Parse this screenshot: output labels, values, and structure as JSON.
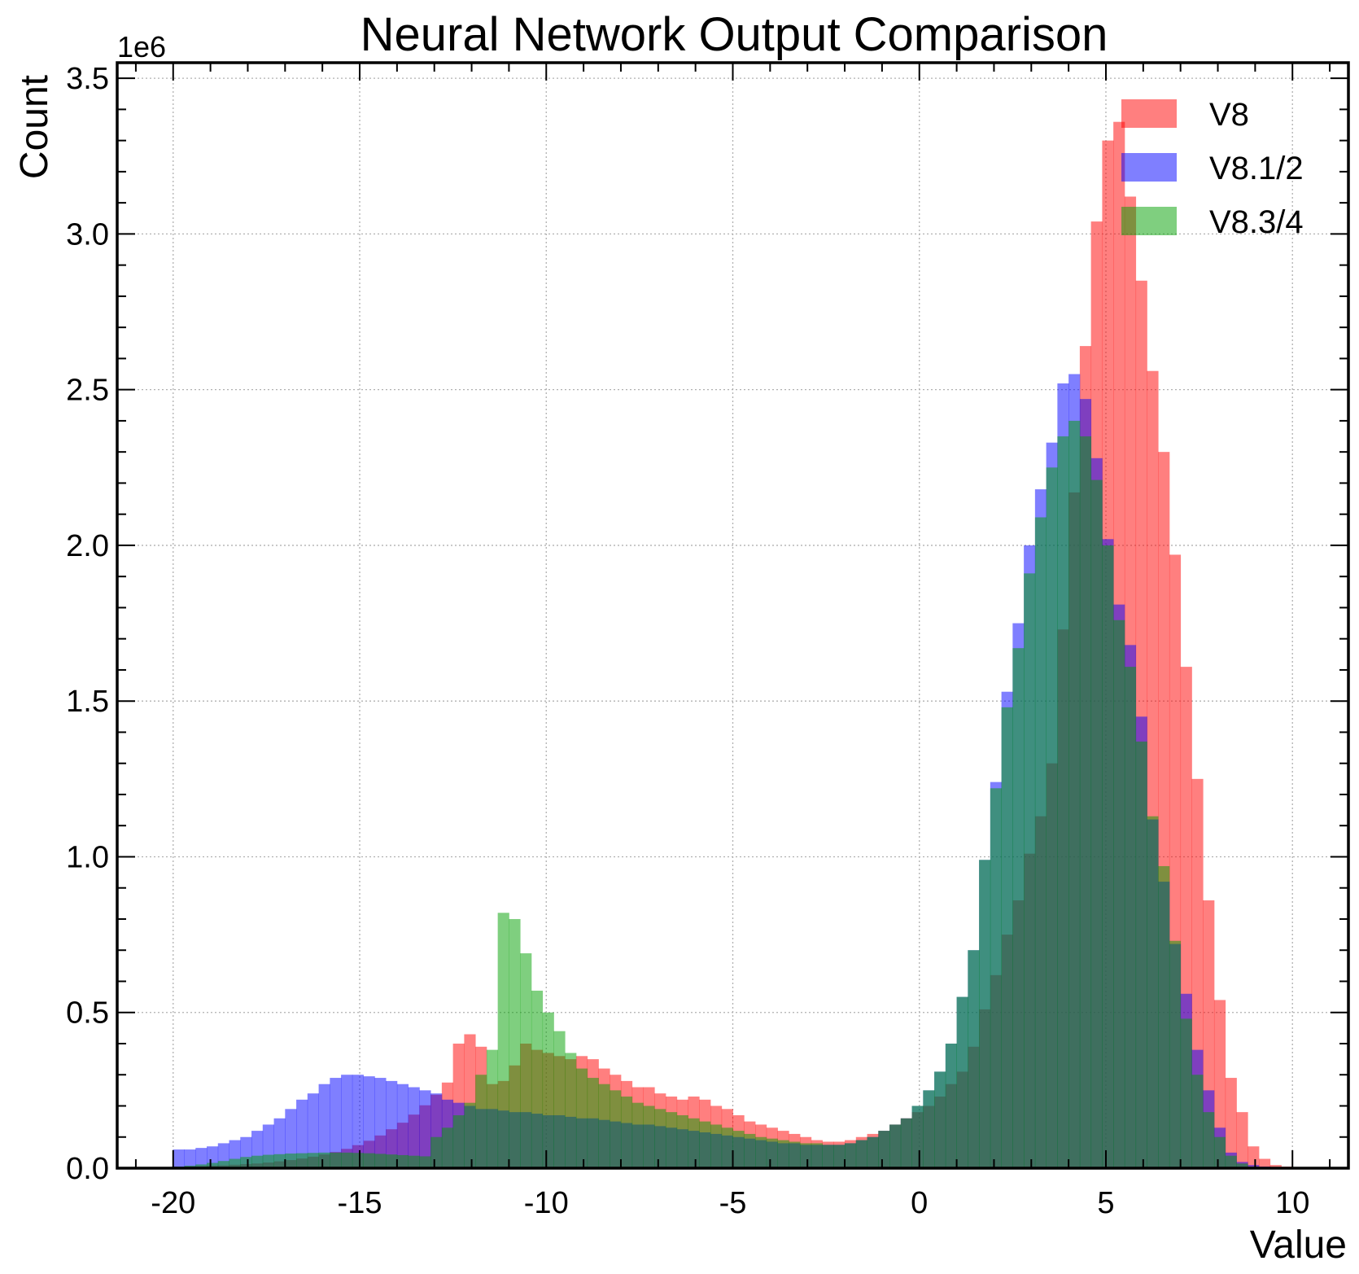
{
  "chart_data": {
    "type": "histogram",
    "title": "Neural Network Output Comparison",
    "xlabel": "Value",
    "ylabel": "Count",
    "y_multiplier_label": "1e6",
    "xlim": [
      -21.5,
      11.5
    ],
    "ylim": [
      0,
      3.55
    ],
    "x_ticks": [
      -20,
      -15,
      -10,
      -5,
      0,
      5,
      10
    ],
    "x_tick_labels": [
      "-20",
      "-15",
      "-10",
      "-5",
      "0",
      "5",
      "10"
    ],
    "y_ticks": [
      0,
      0.5,
      1.0,
      1.5,
      2.0,
      2.5,
      3.0,
      3.5
    ],
    "y_tick_labels": [
      "0.0",
      "0.5",
      "1.0",
      "1.5",
      "2.0",
      "2.5",
      "3.0",
      "3.5"
    ],
    "grid": true,
    "legend_position": "top-right",
    "bin_start": -20,
    "bin_width": 0.3,
    "y_unit": "millions",
    "series": [
      {
        "name": "V8",
        "color": "#ff0000",
        "opacity": 0.5,
        "values": [
          0.005,
          0.006,
          0.007,
          0.008,
          0.009,
          0.011,
          0.013,
          0.015,
          0.018,
          0.022,
          0.026,
          0.031,
          0.037,
          0.044,
          0.052,
          0.062,
          0.074,
          0.088,
          0.105,
          0.125,
          0.146,
          0.172,
          0.202,
          0.236,
          0.275,
          0.4,
          0.43,
          0.39,
          0.27,
          0.28,
          0.33,
          0.4,
          0.38,
          0.37,
          0.36,
          0.35,
          0.36,
          0.35,
          0.32,
          0.3,
          0.28,
          0.26,
          0.26,
          0.24,
          0.23,
          0.22,
          0.23,
          0.22,
          0.2,
          0.19,
          0.17,
          0.15,
          0.14,
          0.13,
          0.12,
          0.11,
          0.1,
          0.09,
          0.085,
          0.085,
          0.09,
          0.1,
          0.11,
          0.12,
          0.14,
          0.16,
          0.18,
          0.2,
          0.23,
          0.27,
          0.31,
          0.39,
          0.51,
          0.62,
          0.75,
          0.86,
          1.01,
          1.13,
          1.3,
          1.73,
          2.17,
          2.64,
          3.04,
          3.3,
          3.36,
          3.12,
          2.85,
          2.56,
          2.3,
          1.97,
          1.61,
          1.25,
          0.86,
          0.54,
          0.29,
          0.18,
          0.07,
          0.03,
          0.01,
          0.005,
          0.002,
          0.001,
          0.0,
          0.0
        ]
      },
      {
        "name": "V8.1/2",
        "color": "#0000ff",
        "opacity": 0.5,
        "values": [
          0.06,
          0.06,
          0.065,
          0.07,
          0.08,
          0.09,
          0.1,
          0.12,
          0.14,
          0.16,
          0.19,
          0.22,
          0.24,
          0.27,
          0.29,
          0.3,
          0.3,
          0.295,
          0.29,
          0.28,
          0.27,
          0.26,
          0.25,
          0.24,
          0.22,
          0.21,
          0.2,
          0.19,
          0.19,
          0.185,
          0.18,
          0.18,
          0.175,
          0.17,
          0.17,
          0.165,
          0.16,
          0.16,
          0.155,
          0.15,
          0.145,
          0.14,
          0.14,
          0.135,
          0.13,
          0.125,
          0.12,
          0.115,
          0.11,
          0.105,
          0.1,
          0.095,
          0.09,
          0.085,
          0.08,
          0.08,
          0.075,
          0.075,
          0.075,
          0.075,
          0.08,
          0.09,
          0.1,
          0.12,
          0.14,
          0.16,
          0.2,
          0.25,
          0.31,
          0.4,
          0.55,
          0.7,
          0.99,
          1.24,
          1.53,
          1.75,
          2.0,
          2.18,
          2.33,
          2.52,
          2.55,
          2.47,
          2.28,
          2.02,
          1.81,
          1.68,
          1.45,
          1.12,
          0.92,
          0.72,
          0.56,
          0.38,
          0.25,
          0.13,
          0.05,
          0.02,
          0.01,
          0.005,
          0.002,
          0.001,
          0.0,
          0.0,
          0.0,
          0.0
        ]
      },
      {
        "name": "V8.3/4",
        "color": "#00a000",
        "opacity": 0.5,
        "values": [
          0.005,
          0.008,
          0.012,
          0.017,
          0.023,
          0.03,
          0.036,
          0.04,
          0.043,
          0.045,
          0.047,
          0.048,
          0.049,
          0.05,
          0.05,
          0.05,
          0.049,
          0.048,
          0.046,
          0.044,
          0.042,
          0.04,
          0.038,
          0.1,
          0.13,
          0.17,
          0.21,
          0.3,
          0.38,
          0.82,
          0.8,
          0.69,
          0.57,
          0.5,
          0.44,
          0.37,
          0.32,
          0.29,
          0.27,
          0.25,
          0.23,
          0.21,
          0.2,
          0.19,
          0.18,
          0.17,
          0.16,
          0.15,
          0.14,
          0.13,
          0.12,
          0.11,
          0.1,
          0.095,
          0.09,
          0.085,
          0.08,
          0.08,
          0.075,
          0.075,
          0.08,
          0.09,
          0.1,
          0.12,
          0.14,
          0.16,
          0.2,
          0.25,
          0.31,
          0.4,
          0.55,
          0.7,
          0.99,
          1.22,
          1.48,
          1.67,
          1.91,
          2.09,
          2.25,
          2.35,
          2.4,
          2.35,
          2.21,
          2.0,
          1.76,
          1.61,
          1.37,
          1.13,
          0.97,
          0.73,
          0.48,
          0.3,
          0.18,
          0.1,
          0.04,
          0.015,
          0.005,
          0.002,
          0.001,
          0.0,
          0.0,
          0.0,
          0.0,
          0.0
        ]
      }
    ]
  }
}
